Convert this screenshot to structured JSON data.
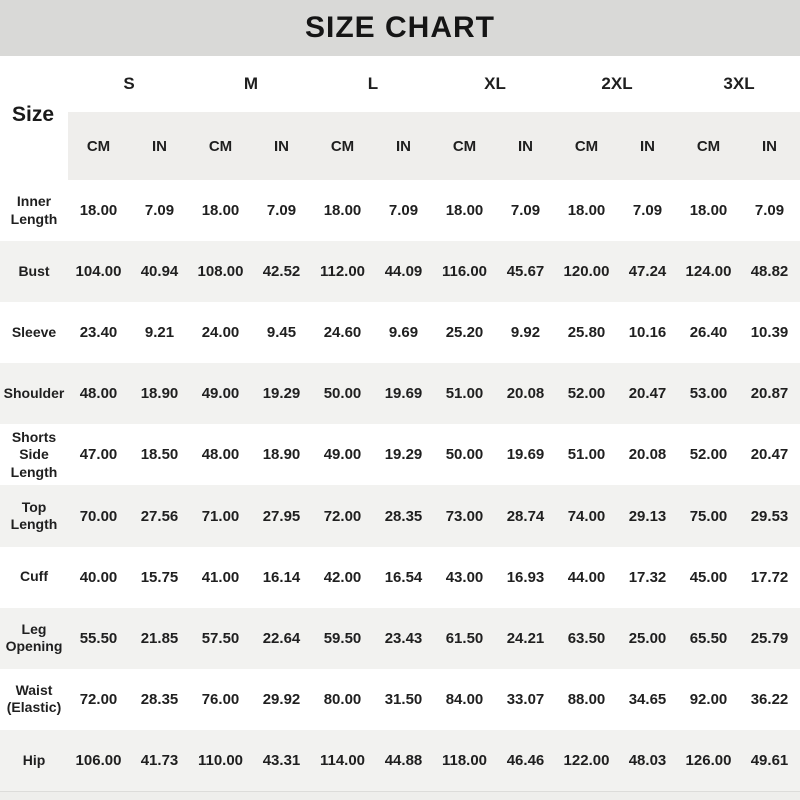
{
  "title": "SIZE CHART",
  "corner_label": "Size",
  "sizes": [
    "S",
    "M",
    "L",
    "XL",
    "2XL",
    "3XL"
  ],
  "units": [
    "CM",
    "IN"
  ],
  "colors": {
    "title_band": "#d9d9d7",
    "row_alternate": "#f2f2f0",
    "unit_band": "#efeeec",
    "text": "#1f1f1f"
  },
  "rows": [
    {
      "label": "Inner Length",
      "values": [
        "18.00",
        "7.09",
        "18.00",
        "7.09",
        "18.00",
        "7.09",
        "18.00",
        "7.09",
        "18.00",
        "7.09",
        "18.00",
        "7.09"
      ]
    },
    {
      "label": "Bust",
      "values": [
        "104.00",
        "40.94",
        "108.00",
        "42.52",
        "112.00",
        "44.09",
        "116.00",
        "45.67",
        "120.00",
        "47.24",
        "124.00",
        "48.82"
      ]
    },
    {
      "label": "Sleeve",
      "values": [
        "23.40",
        "9.21",
        "24.00",
        "9.45",
        "24.60",
        "9.69",
        "25.20",
        "9.92",
        "25.80",
        "10.16",
        "26.40",
        "10.39"
      ]
    },
    {
      "label": "Shoulder",
      "values": [
        "48.00",
        "18.90",
        "49.00",
        "19.29",
        "50.00",
        "19.69",
        "51.00",
        "20.08",
        "52.00",
        "20.47",
        "53.00",
        "20.87"
      ]
    },
    {
      "label": "Shorts Side Length",
      "values": [
        "47.00",
        "18.50",
        "48.00",
        "18.90",
        "49.00",
        "19.29",
        "50.00",
        "19.69",
        "51.00",
        "20.08",
        "52.00",
        "20.47"
      ]
    },
    {
      "label": "Top Length",
      "values": [
        "70.00",
        "27.56",
        "71.00",
        "27.95",
        "72.00",
        "28.35",
        "73.00",
        "28.74",
        "74.00",
        "29.13",
        "75.00",
        "29.53"
      ]
    },
    {
      "label": "Cuff",
      "values": [
        "40.00",
        "15.75",
        "41.00",
        "16.14",
        "42.00",
        "16.54",
        "43.00",
        "16.93",
        "44.00",
        "17.32",
        "45.00",
        "17.72"
      ]
    },
    {
      "label": "Leg Opening",
      "values": [
        "55.50",
        "21.85",
        "57.50",
        "22.64",
        "59.50",
        "23.43",
        "61.50",
        "24.21",
        "63.50",
        "25.00",
        "65.50",
        "25.79"
      ]
    },
    {
      "label": "Waist (Elastic)",
      "values": [
        "72.00",
        "28.35",
        "76.00",
        "29.92",
        "80.00",
        "31.50",
        "84.00",
        "33.07",
        "88.00",
        "34.65",
        "92.00",
        "36.22"
      ]
    },
    {
      "label": "Hip",
      "values": [
        "106.00",
        "41.73",
        "110.00",
        "43.31",
        "114.00",
        "44.88",
        "118.00",
        "46.46",
        "122.00",
        "48.03",
        "126.00",
        "49.61"
      ]
    }
  ]
}
